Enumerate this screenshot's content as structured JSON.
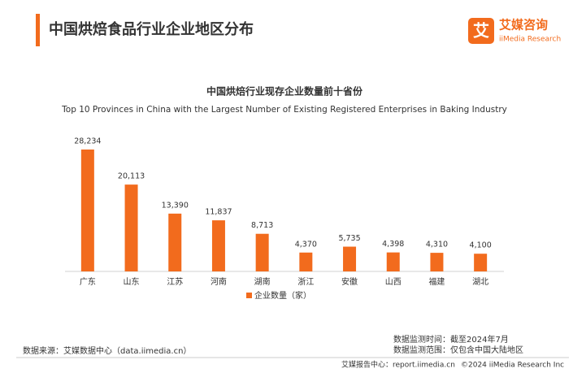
{
  "header": {
    "title": "中国烘焙食品行业企业地区分布",
    "logo_mark": "艾",
    "logo_cn": "艾媒咨询",
    "logo_en": "iiMedia Research"
  },
  "chart_data": {
    "type": "bar",
    "title": "中国烘焙行业现存企业数量前十省份",
    "subtitle": "Top 10 Provinces in China with the Largest Number of Existing Registered Enterprises in Baking Industry",
    "categories": [
      "广东",
      "山东",
      "江苏",
      "河南",
      "湖南",
      "浙江",
      "安徽",
      "山西",
      "福建",
      "湖北"
    ],
    "series": [
      {
        "name": "企业数量（家）",
        "color": "#f26b1d",
        "values": [
          28234,
          20113,
          13390,
          11837,
          8713,
          4370,
          5735,
          4398,
          4310,
          4100
        ],
        "value_labels": [
          "28,234",
          "20,113",
          "13,390",
          "11,837",
          "8,713",
          "4,370",
          "5,735",
          "4,398",
          "4,310",
          "4,100"
        ]
      }
    ],
    "legend": "bottom"
  },
  "footer": {
    "source": "数据来源：艾媒数据中心（data.iimedia.cn）",
    "monitor_time": "数据监测时间：截至2024年7月",
    "monitor_scope": "数据监测范围：仅包含中国大陆地区",
    "report_center": "艾媒报告中心：report.iimedia.cn",
    "copyright": "©2024 iiMedia Research Inc"
  }
}
